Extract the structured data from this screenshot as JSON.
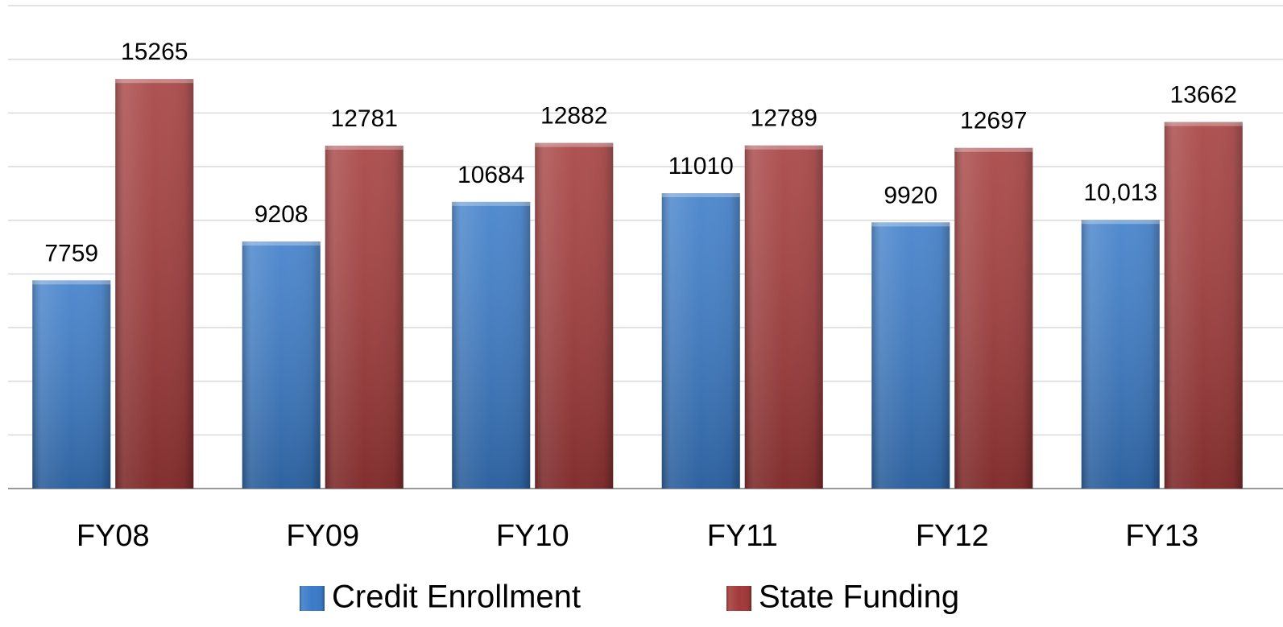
{
  "chart_data": {
    "type": "bar",
    "categories": [
      "FY08",
      "FY09",
      "FY10",
      "FY11",
      "FY12",
      "FY13"
    ],
    "series": [
      {
        "name": "Credit Enrollment",
        "color": "#3a7bc8",
        "values": [
          7759,
          9208,
          10684,
          11010,
          9920,
          10013
        ],
        "value_labels": [
          "7759",
          "9208",
          "10684",
          "11010",
          "9920",
          "10,013"
        ]
      },
      {
        "name": "State Funding",
        "color": "#a33a3a",
        "values": [
          15265,
          12781,
          12882,
          12789,
          12697,
          13662
        ]
      }
    ],
    "ylim": [
      0,
      18000
    ],
    "yticks": [
      0,
      2000,
      4000,
      6000,
      8000,
      10000,
      12000,
      14000,
      16000,
      18000
    ],
    "grid": true,
    "legend": "bottom"
  }
}
